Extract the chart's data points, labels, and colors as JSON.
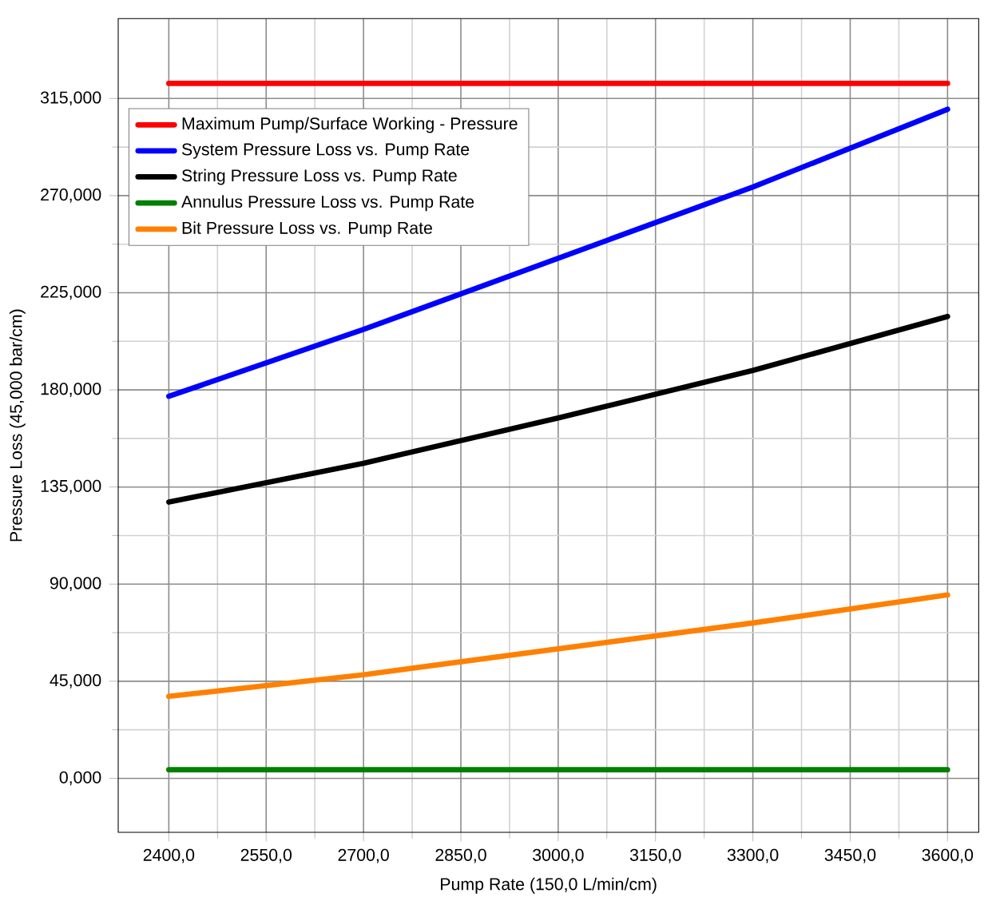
{
  "chart_data": {
    "type": "line",
    "xlabel": "Pump Rate (150,0 L/min/cm)",
    "ylabel": "Pressure Loss (45,000 bar/cm)",
    "x": [
      2400,
      2700,
      3000,
      3300,
      3600
    ],
    "series": [
      {
        "name": "Maximum Pump/Surface Working - Pressure",
        "color": "#ff0000",
        "values": [
          322,
          322,
          322,
          322,
          322
        ]
      },
      {
        "name": "System Pressure Loss vs. Pump Rate",
        "color": "#0000ff",
        "values": [
          177,
          208,
          241,
          274,
          310
        ]
      },
      {
        "name": "String Pressure Loss vs. Pump Rate",
        "color": "#000000",
        "values": [
          128,
          146,
          167,
          189,
          214
        ]
      },
      {
        "name": "Annulus Pressure Loss vs. Pump Rate",
        "color": "#008000",
        "values": [
          4,
          4,
          4,
          4,
          4
        ]
      },
      {
        "name": "Bit Pressure Loss vs. Pump Rate",
        "color": "#ff8000",
        "values": [
          38,
          48,
          60,
          72,
          85
        ]
      }
    ],
    "xlim": [
      2322,
      3648
    ],
    "ylim": [
      -25,
      352
    ],
    "xticks": [
      {
        "value": 2400,
        "label": "2400,0"
      },
      {
        "value": 2550,
        "label": "2550,0"
      },
      {
        "value": 2700,
        "label": "2700,0"
      },
      {
        "value": 2850,
        "label": "2850,0"
      },
      {
        "value": 3000,
        "label": "3000,0"
      },
      {
        "value": 3150,
        "label": "3150,0"
      },
      {
        "value": 3300,
        "label": "3300,0"
      },
      {
        "value": 3450,
        "label": "3450,0"
      },
      {
        "value": 3600,
        "label": "3600,0"
      }
    ],
    "yticks": [
      {
        "value": 0,
        "label": "0,000"
      },
      {
        "value": 45,
        "label": "45,000"
      },
      {
        "value": 90,
        "label": "90,000"
      },
      {
        "value": 135,
        "label": "135,000"
      },
      {
        "value": 180,
        "label": "180,000"
      },
      {
        "value": 225,
        "label": "225,000"
      },
      {
        "value": 270,
        "label": "270,000"
      },
      {
        "value": 315,
        "label": "315,000"
      }
    ],
    "grid": true,
    "legend": "top left",
    "marker": "none",
    "line_style": "solid"
  }
}
